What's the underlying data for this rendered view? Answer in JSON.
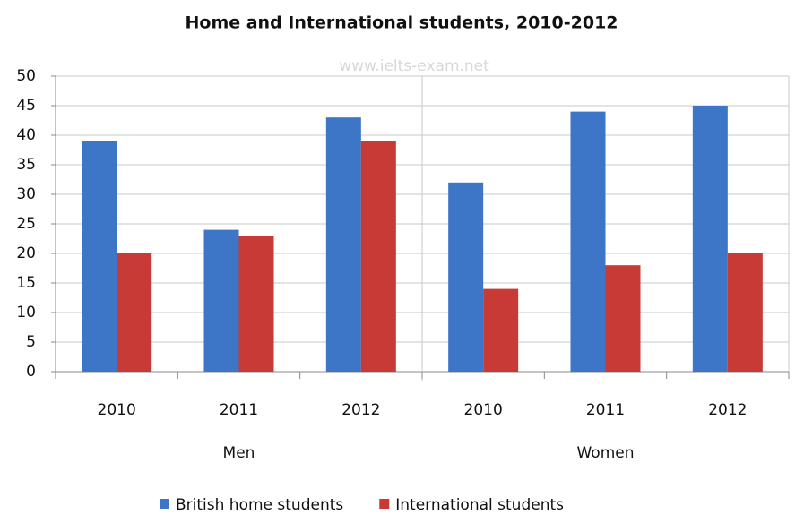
{
  "chart_data": {
    "type": "bar",
    "title": "Home and International students, 2010-2012",
    "watermark": "www.ielts-exam.net",
    "categories": [
      "2010",
      "2011",
      "2012",
      "2010",
      "2011",
      "2012"
    ],
    "group_labels": [
      "Men",
      "Women"
    ],
    "series": [
      {
        "name": "British home students",
        "color": "#3d76c6",
        "values": [
          39,
          24,
          43,
          32,
          44,
          45
        ]
      },
      {
        "name": "International students",
        "color": "#c73a35",
        "values": [
          20,
          23,
          39,
          14,
          18,
          20
        ]
      }
    ],
    "ylim": [
      0,
      50
    ],
    "yticks": [
      0,
      5,
      10,
      15,
      20,
      25,
      30,
      35,
      40,
      45,
      50
    ],
    "grid": true,
    "legend": "bottom"
  }
}
